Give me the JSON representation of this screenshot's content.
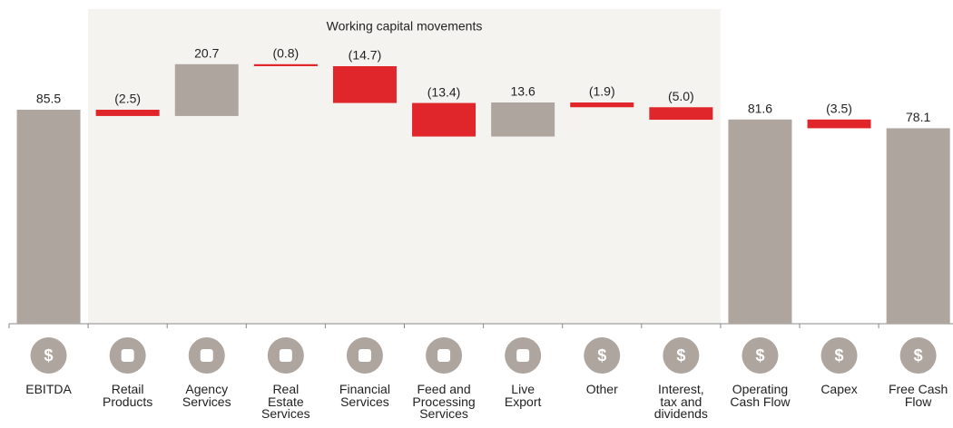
{
  "chart_data": {
    "type": "waterfall",
    "annotation": {
      "text": "Working capital movements",
      "from": "Retail\nProducts",
      "to": "Interest,\ntax and\ndividends"
    },
    "categories": [
      "EBITDA",
      "Retail\nProducts",
      "Agency\nServices",
      "Real\nEstate\nServices",
      "Financial\nServices",
      "Feed and\nProcessing\nServices",
      "Live\nExport",
      "Other",
      "Interest,\ntax and\ndividends",
      "Operating\nCash Flow",
      "Capex",
      "Free Cash\nFlow"
    ],
    "measure": [
      "absolute",
      "relative",
      "relative",
      "relative",
      "relative",
      "relative",
      "relative",
      "relative",
      "relative",
      "absolute",
      "relative",
      "absolute"
    ],
    "values": [
      85.5,
      -2.5,
      20.7,
      -0.8,
      -14.7,
      -13.4,
      13.6,
      -1.9,
      -5.0,
      81.6,
      -3.5,
      78.1
    ],
    "value_labels": [
      "85.5",
      "(2.5)",
      "20.7",
      "(0.8)",
      "(14.7)",
      "(13.4)",
      "13.6",
      "(1.9)",
      "(5.0)",
      "81.6",
      "(3.5)",
      "78.1"
    ],
    "icon_labels": [
      "$",
      null,
      null,
      null,
      null,
      null,
      null,
      "$",
      "$",
      "$",
      "$",
      "$"
    ],
    "colors": {
      "total": "#aea59e",
      "increase": "#aea59e",
      "decrease": "#e0262b",
      "band": "#f5f3f0"
    },
    "ylim": [
      0,
      125
    ]
  }
}
